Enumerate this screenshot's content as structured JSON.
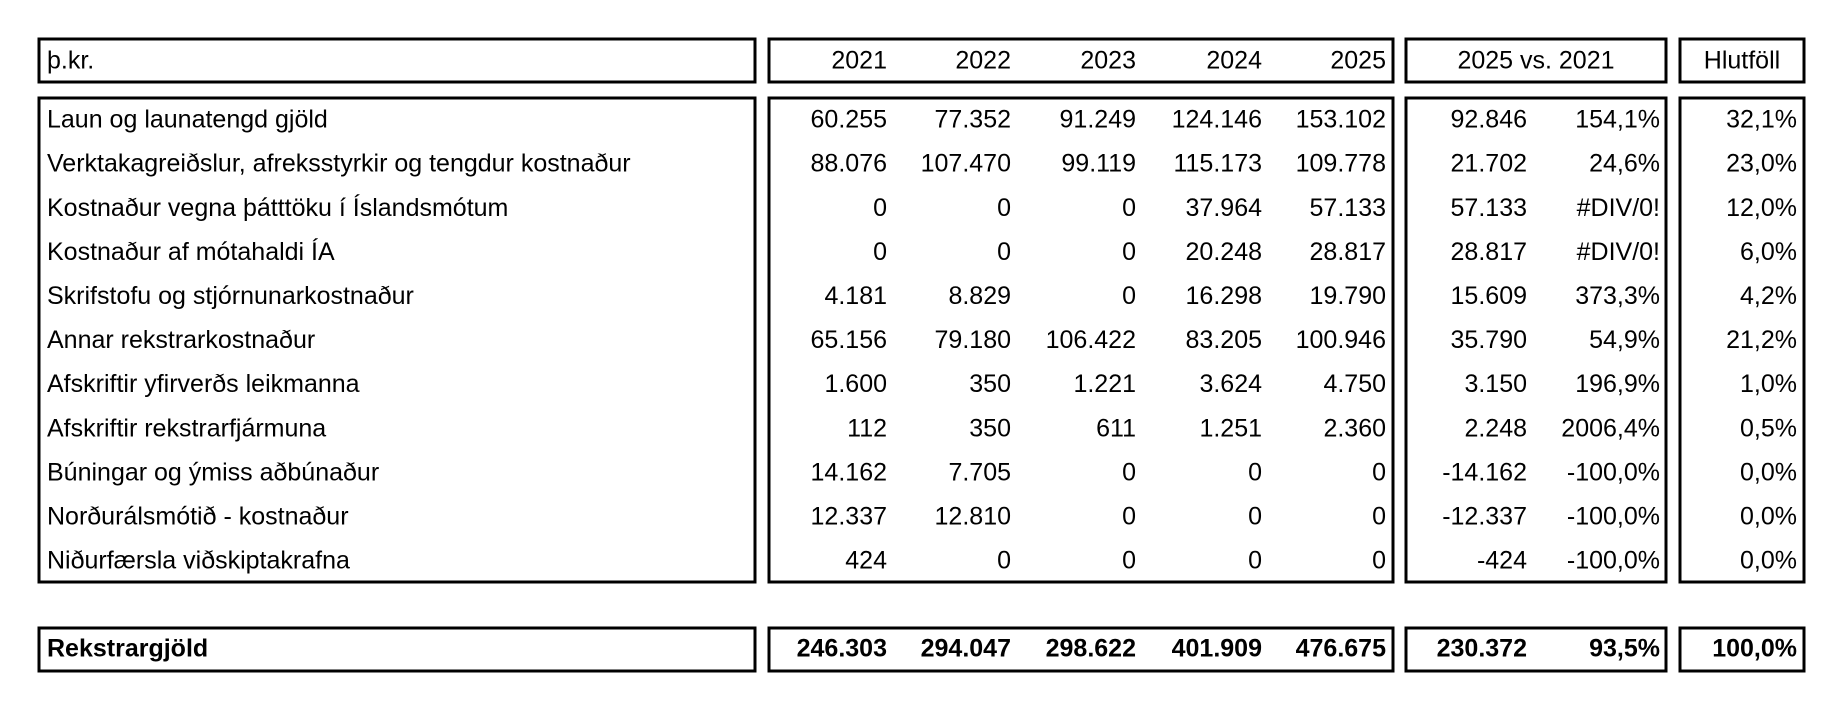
{
  "header": {
    "label": "þ.kr.",
    "years": [
      "2021",
      "2022",
      "2023",
      "2024",
      "2025"
    ],
    "comparison": "2025 vs. 2021",
    "share": "Hlutföll"
  },
  "rows": [
    [
      "Laun og launatengd gjöld",
      "60.255",
      "77.352",
      "91.249",
      "124.146",
      "153.102",
      "92.846",
      "154,1%",
      "32,1%"
    ],
    [
      "Verktakagreiðslur, afreksstyrkir og tengdur kostnaður",
      "88.076",
      "107.470",
      "99.119",
      "115.173",
      "109.778",
      "21.702",
      "24,6%",
      "23,0%"
    ],
    [
      "Kostnaður vegna þátttöku í Íslandsmótum",
      "0",
      "0",
      "0",
      "37.964",
      "57.133",
      "57.133",
      "#DIV/0!",
      "12,0%"
    ],
    [
      "Kostnaður af mótahaldi ÍA",
      "0",
      "0",
      "0",
      "20.248",
      "28.817",
      "28.817",
      "#DIV/0!",
      "6,0%"
    ],
    [
      "Skrifstofu og stjórnunarkostnaður",
      "4.181",
      "8.829",
      "0",
      "16.298",
      "19.790",
      "15.609",
      "373,3%",
      "4,2%"
    ],
    [
      "Annar rekstrarkostnaður",
      "65.156",
      "79.180",
      "106.422",
      "83.205",
      "100.946",
      "35.790",
      "54,9%",
      "21,2%"
    ],
    [
      "Afskriftir yfirverðs leikmanna",
      "1.600",
      "350",
      "1.221",
      "3.624",
      "4.750",
      "3.150",
      "196,9%",
      "1,0%"
    ],
    [
      "Afskriftir rekstrarfjármuna",
      "112",
      "350",
      "611",
      "1.251",
      "2.360",
      "2.248",
      "2006,4%",
      "0,5%"
    ],
    [
      "Búningar og ýmiss aðbúnaður",
      "14.162",
      "7.705",
      "0",
      "0",
      "0",
      "-14.162",
      "-100,0%",
      "0,0%"
    ],
    [
      "Norðurálsmótið - kostnaður",
      "12.337",
      "12.810",
      "0",
      "0",
      "0",
      "-12.337",
      "-100,0%",
      "0,0%"
    ],
    [
      "Niðurfærsla viðskiptakrafna",
      "424",
      "0",
      "0",
      "0",
      "0",
      "-424",
      "-100,0%",
      "0,0%"
    ]
  ],
  "total": [
    "Rekstrargjöld",
    "246.303",
    "294.047",
    "298.622",
    "401.909",
    "476.675",
    "230.372",
    "93,5%",
    "100,0%"
  ]
}
